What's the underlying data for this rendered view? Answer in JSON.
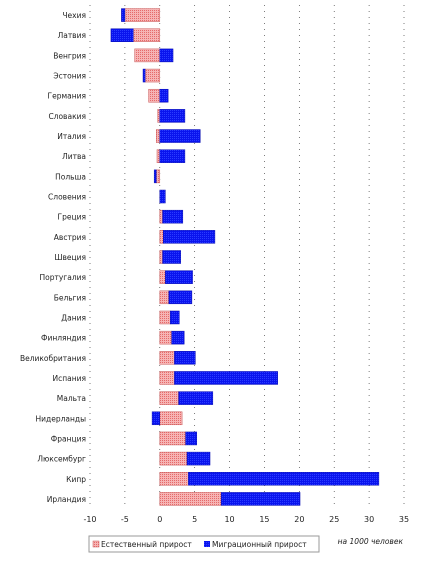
{
  "chart_data": {
    "type": "bar",
    "orientation": "horizontal",
    "stacked": true,
    "categories": [
      "Чехия",
      "Латвия",
      "Венгрия",
      "Эстония",
      "Германия",
      "Словакия",
      "Италия",
      "Литва",
      "Польша",
      "Словения",
      "Греция",
      "Австрия",
      "Швеция",
      "Португалия",
      "Бельгия",
      "Дания",
      "Финляндия",
      "Великобритания",
      "Испания",
      "Мальта",
      "Нидерланды",
      "Франция",
      "Люксембург",
      "Кипр",
      "Ирландия"
    ],
    "series": [
      {
        "name": "Естественный прирост",
        "color": "#f4a0a0",
        "values": [
          -5.0,
          -3.8,
          -3.6,
          -2.1,
          -1.6,
          -0.3,
          -0.5,
          -0.4,
          -0.5,
          0.0,
          0.4,
          0.5,
          0.4,
          0.8,
          1.3,
          1.5,
          1.7,
          2.1,
          2.1,
          2.7,
          3.2,
          3.7,
          3.9,
          4.1,
          8.8
        ]
      },
      {
        "name": "Миграционный прирост",
        "color": "#0a14ee",
        "values": [
          -0.5,
          -3.2,
          1.9,
          -0.3,
          1.2,
          3.6,
          5.8,
          3.6,
          -0.3,
          0.8,
          2.9,
          7.4,
          2.6,
          3.9,
          3.3,
          1.3,
          1.8,
          3.0,
          14.8,
          4.9,
          -1.1,
          1.6,
          3.3,
          27.3,
          11.3
        ]
      }
    ],
    "x_ticks": [
      -10,
      -5,
      0,
      5,
      10,
      15,
      20,
      25,
      30,
      35
    ],
    "xlim": [
      -10,
      35
    ],
    "grid": "dotted vertical",
    "legend_position": "bottom",
    "unit_note": "на 1000 человек"
  }
}
